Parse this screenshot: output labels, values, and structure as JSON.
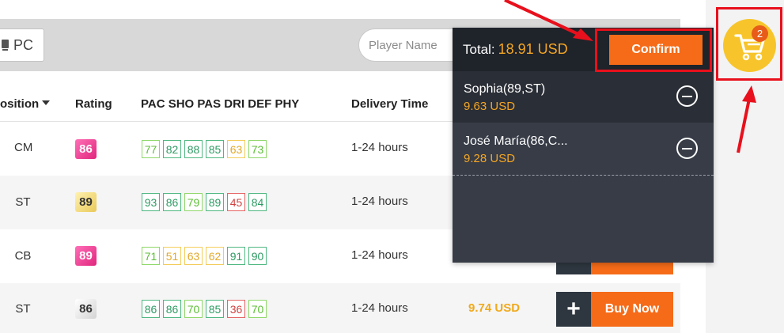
{
  "filter": {
    "platform_label": "PC",
    "search_placeholder": "Player Name"
  },
  "table": {
    "headers": {
      "position": "osition",
      "rating": "Rating",
      "stats": "PAC SHO PAS DRI DEF PHY",
      "delivery": "Delivery Time"
    },
    "rows": [
      {
        "position": "CM",
        "rating": "86",
        "rating_tier": "pink",
        "stats": [
          "77",
          "82",
          "88",
          "85",
          "63",
          "73"
        ],
        "stat_colors": [
          "lgreen",
          "green",
          "green",
          "green",
          "yellow",
          "lgreen"
        ],
        "delivery": "1-24 hours",
        "price": ""
      },
      {
        "position": "ST",
        "rating": "89",
        "rating_tier": "gold",
        "stats": [
          "93",
          "86",
          "79",
          "89",
          "45",
          "84"
        ],
        "stat_colors": [
          "green",
          "green",
          "lgreen",
          "green",
          "red",
          "green"
        ],
        "delivery": "1-24 hours",
        "price": ""
      },
      {
        "position": "CB",
        "rating": "89",
        "rating_tier": "pink",
        "stats": [
          "71",
          "51",
          "63",
          "62",
          "91",
          "90"
        ],
        "stat_colors": [
          "lgreen",
          "yellow",
          "yellow",
          "yellow",
          "green",
          "green"
        ],
        "delivery": "1-24 hours",
        "price": ""
      },
      {
        "position": "ST",
        "rating": "86",
        "rating_tier": "silver",
        "stats": [
          "86",
          "86",
          "70",
          "85",
          "36",
          "70"
        ],
        "stat_colors": [
          "green",
          "green",
          "lgreen",
          "green",
          "red",
          "lgreen"
        ],
        "delivery": "1-24 hours",
        "price": "9.74 USD"
      }
    ],
    "buy_plus": "+",
    "buy_label": "Buy Now"
  },
  "cart": {
    "total_label": "Total:",
    "total_amount": "18.91 USD",
    "confirm_label": "Confirm",
    "items": [
      {
        "name": "Sophia(89,ST)",
        "price": "9.63 USD"
      },
      {
        "name": "José María(86,C...",
        "price": "9.28 USD"
      }
    ],
    "badge_count": "2"
  },
  "colors": {
    "accent_orange": "#f56b18",
    "price_gold": "#f5a623",
    "cart_yellow": "#f7c52b",
    "highlight_red": "#e8101c",
    "panel_dark": "#373c47"
  },
  "icons": [
    "pc-icon",
    "caret-down-icon",
    "plus-icon",
    "minus-circle-icon",
    "shopping-cart-icon"
  ]
}
